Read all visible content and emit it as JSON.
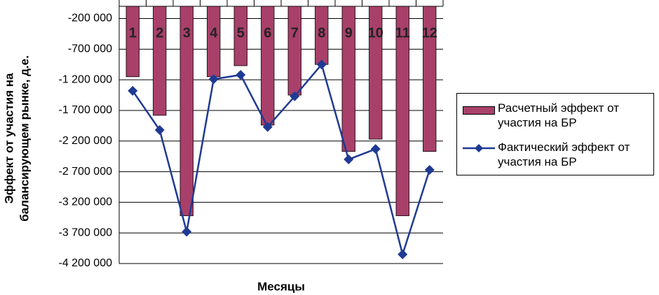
{
  "chart_data": {
    "type": "bar_line",
    "y_label": [
      "Эффект от участия на",
      "балансирующем рынке, д.е."
    ],
    "x_label": "Месяцы",
    "categories": [
      "1",
      "2",
      "3",
      "4",
      "5",
      "6",
      "7",
      "8",
      "9",
      "10",
      "11",
      "12"
    ],
    "series": [
      {
        "name": "Расчетный эффект от участия на БР",
        "type": "bar",
        "color": "#a8406a",
        "values": [
          -1150000,
          -1780000,
          -3420000,
          -1150000,
          -970000,
          -1940000,
          -1450000,
          -950000,
          -2370000,
          -2170000,
          -3420000,
          -2370000
        ]
      },
      {
        "name": "Фактический эффект от участия на БР",
        "type": "line",
        "color": "#1f3a93",
        "values": [
          -1380000,
          -2020000,
          -3680000,
          -1190000,
          -1120000,
          -1970000,
          -1470000,
          -950000,
          -2500000,
          -2330000,
          -4050000,
          -2670000
        ]
      }
    ],
    "ylim": [
      -4200000,
      0
    ],
    "yticks": [
      {
        "value": -200000,
        "label": "-200 000"
      },
      {
        "value": -700000,
        "label": "-700 000"
      },
      {
        "value": -1200000,
        "label": "-1 200 000"
      },
      {
        "value": -1700000,
        "label": "-1 700 000"
      },
      {
        "value": -2200000,
        "label": "-2 200 000"
      },
      {
        "value": -2700000,
        "label": "-2 700 000"
      },
      {
        "value": -3200000,
        "label": "-3 200 000"
      },
      {
        "value": -3700000,
        "label": "-3 700 000"
      },
      {
        "value": -4200000,
        "label": "-4 200 000"
      }
    ],
    "grid": true
  }
}
